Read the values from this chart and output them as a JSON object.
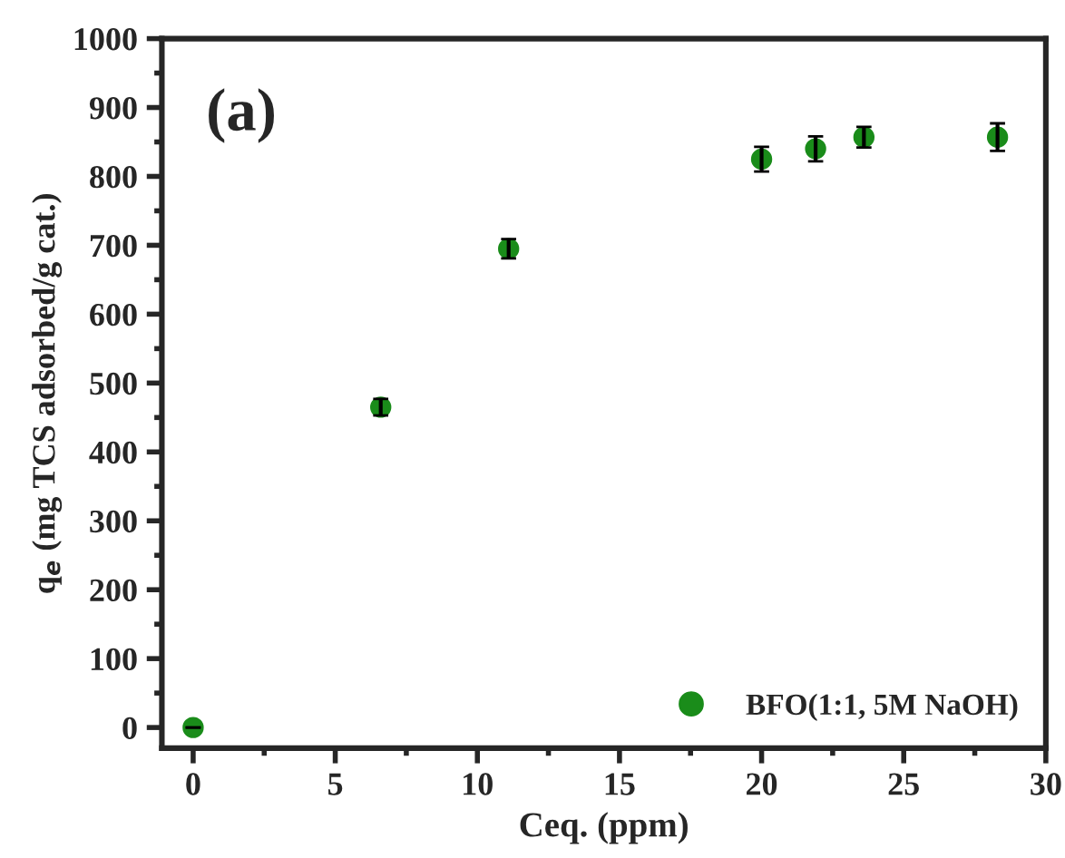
{
  "chart_data": {
    "type": "scatter",
    "xlabel": "Ceq. (ppm)",
    "ylabel": "q$_{e}$ (mg TCS adsorbed/g cat.)",
    "annotations": [
      "(a)"
    ],
    "series": [
      {
        "name": "BFO(1:1, 5M NaOH)",
        "color": "#1a8c1a",
        "x": [
          0,
          6.6,
          11.1,
          20.0,
          21.9,
          23.6,
          28.3
        ],
        "values": [
          0,
          465,
          695,
          825,
          840,
          857,
          857
        ],
        "errors": [
          null,
          12,
          14,
          18,
          18,
          15,
          20
        ]
      }
    ],
    "xlim": [
      -1.1,
      30
    ],
    "xticks": [
      0,
      5,
      10,
      15,
      20,
      25,
      30
    ],
    "ylim": [
      -30,
      1000
    ],
    "yticks": [
      0,
      100,
      200,
      300,
      400,
      500,
      600,
      700,
      800,
      900,
      1000
    ],
    "marker": "circle",
    "legend": "bottom right",
    "grid": false
  }
}
